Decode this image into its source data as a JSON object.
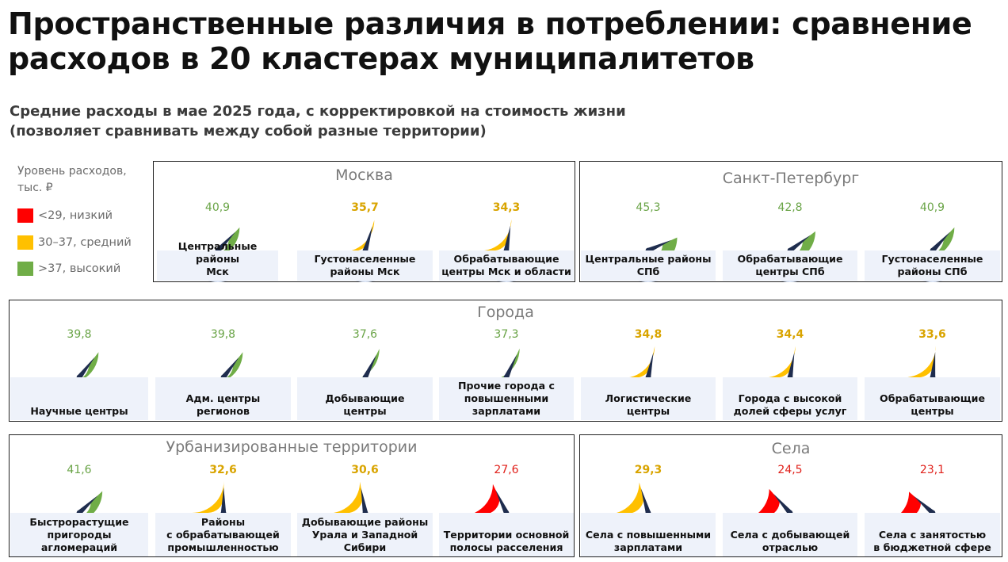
{
  "title": "Пространственные различия в потреблении: сравнение расходов в 20 кластерах муниципалитетов",
  "subtitle_line1": "Средние расходы в мае 2025 года, с корректировкой на стоимость жизни",
  "subtitle_line2": "(позволяет сравнивать между собой разные территории)",
  "legend": {
    "title_line1": "Уровень расходов,",
    "title_line2": "тыс. ₽",
    "items": [
      {
        "label": "<29, низкий",
        "color": "#ff0000"
      },
      {
        "label": "30–37, средний",
        "color": "#ffc000"
      },
      {
        "label": ">37, высокий",
        "color": "#70ad47"
      }
    ]
  },
  "colors": {
    "low": "#ff0000",
    "mid": "#ffc000",
    "high": "#70ad47",
    "track": "#dde6f6",
    "needle": "#1f2d4e",
    "label_bg": "#eef2fa",
    "value_low": "#e0201a",
    "value_mid": "#d9a400",
    "value_high": "#6aa447"
  },
  "chart_data": {
    "type": "gauge",
    "unit": "тыс. ₽",
    "thresholds": {
      "low_max": 29,
      "mid_max": 37
    },
    "panels": [
      {
        "title": "Москва",
        "gauges": [
          {
            "lines": [
              "Центральные районы",
              "Мск"
            ],
            "value": 40.9,
            "display": "40,9",
            "level": "high"
          },
          {
            "lines": [
              "Густонаселенные",
              "районы Мск"
            ],
            "value": 35.7,
            "display": "35,7",
            "level": "mid"
          },
          {
            "lines": [
              "Обрабатывающие",
              "центры Мск и области"
            ],
            "value": 34.3,
            "display": "34,3",
            "level": "mid"
          }
        ]
      },
      {
        "title": "Санкт-Петербург",
        "gauges": [
          {
            "lines": [
              "Центральные районы",
              "СПб"
            ],
            "value": 45.3,
            "display": "45,3",
            "level": "high"
          },
          {
            "lines": [
              "Обрабатывающие",
              "центры СПб"
            ],
            "value": 42.8,
            "display": "42,8",
            "level": "high"
          },
          {
            "lines": [
              "Густонаселенные",
              "районы СПб"
            ],
            "value": 40.9,
            "display": "40,9",
            "level": "high"
          }
        ]
      },
      {
        "title": "Города",
        "gauges": [
          {
            "lines": [
              "Научные центры"
            ],
            "value": 39.8,
            "display": "39,8",
            "level": "high"
          },
          {
            "lines": [
              "Адм. центры",
              "регионов"
            ],
            "value": 39.8,
            "display": "39,8",
            "level": "high"
          },
          {
            "lines": [
              "Добывающие",
              "центры"
            ],
            "value": 37.6,
            "display": "37,6",
            "level": "high"
          },
          {
            "lines": [
              "Прочие города  с",
              "повышенными",
              "зарплатами"
            ],
            "value": 37.3,
            "display": "37,3",
            "level": "high"
          },
          {
            "lines": [
              "Логистические",
              "центры"
            ],
            "value": 34.8,
            "display": "34,8",
            "level": "mid"
          },
          {
            "lines": [
              "Города с высокой",
              "долей сферы услуг"
            ],
            "value": 34.4,
            "display": "34,4",
            "level": "mid"
          },
          {
            "lines": [
              "Обрабатывающие",
              "центры"
            ],
            "value": 33.6,
            "display": "33,6",
            "level": "mid"
          }
        ]
      },
      {
        "title": "Урбанизированные территории",
        "gauges": [
          {
            "lines": [
              "Быстрорастущие",
              "пригороды",
              "агломераций"
            ],
            "value": 41.6,
            "display": "41,6",
            "level": "high"
          },
          {
            "lines": [
              "Районы",
              "с обрабатывающей",
              "промышленностью"
            ],
            "value": 32.6,
            "display": "32,6",
            "level": "mid"
          },
          {
            "lines": [
              "Добывающие районы",
              "Урала и Западной",
              "Сибири"
            ],
            "value": 30.6,
            "display": "30,6",
            "level": "mid"
          },
          {
            "lines": [
              "Территории основной",
              "полосы расселения"
            ],
            "value": 27.6,
            "display": "27,6",
            "level": "low"
          }
        ]
      },
      {
        "title": "Села",
        "gauges": [
          {
            "lines": [
              "Села с повышенными",
              "зарплатами"
            ],
            "value": 29.3,
            "display": "29,3",
            "level": "mid"
          },
          {
            "lines": [
              "Села с добывающей",
              "отраслью"
            ],
            "value": 24.5,
            "display": "24,5",
            "level": "low"
          },
          {
            "lines": [
              "Села с занятостью",
              "в бюджетной сфере"
            ],
            "value": 23.1,
            "display": "23,1",
            "level": "low"
          }
        ]
      }
    ]
  }
}
